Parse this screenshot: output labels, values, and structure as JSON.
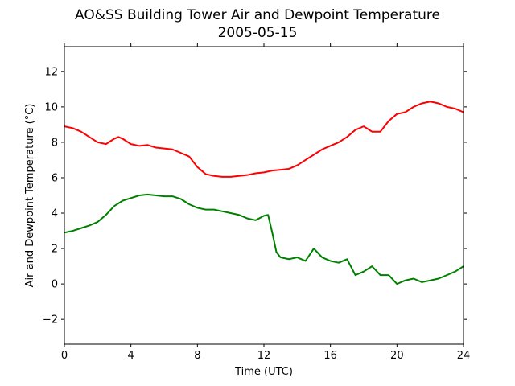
{
  "chart_data": {
    "type": "line",
    "title": "AO&SS Building Tower Air and Dewpoint Temperature",
    "subtitle": "2005-05-15",
    "xlabel": "Time (UTC)",
    "ylabel": "Air and Dewpoint Temperature (°C)",
    "xlim": [
      0,
      24
    ],
    "ylim": [
      -3.4,
      13.4
    ],
    "x_ticks": [
      0,
      4,
      8,
      12,
      16,
      20,
      24
    ],
    "y_ticks": [
      -2,
      0,
      2,
      4,
      6,
      8,
      10,
      12
    ],
    "grid": false,
    "legend": "none",
    "series": [
      {
        "color": "#ff0000",
        "x": [
          0,
          0.5,
          1,
          1.5,
          2,
          2.5,
          3,
          3.25,
          3.5,
          4,
          4.5,
          5,
          5.5,
          6,
          6.5,
          7,
          7.5,
          8,
          8.5,
          9,
          9.5,
          10,
          10.5,
          11,
          11.5,
          12,
          12.5,
          13,
          13.5,
          14,
          14.5,
          15,
          15.5,
          16,
          16.5,
          17,
          17.5,
          18,
          18.5,
          19,
          19.5,
          20,
          20.5,
          21,
          21.5,
          22,
          22.5,
          23,
          23.5,
          24
        ],
        "y": [
          8.9,
          8.8,
          8.6,
          8.3,
          8.0,
          7.9,
          8.2,
          8.3,
          8.2,
          7.9,
          7.8,
          7.85,
          7.7,
          7.65,
          7.6,
          7.4,
          7.2,
          6.6,
          6.2,
          6.1,
          6.05,
          6.05,
          6.1,
          6.15,
          6.25,
          6.3,
          6.4,
          6.45,
          6.5,
          6.7,
          7.0,
          7.3,
          7.6,
          7.8,
          8.0,
          8.3,
          8.7,
          8.9,
          8.6,
          8.6,
          9.2,
          9.6,
          9.7,
          10.0,
          10.2,
          10.3,
          10.2,
          10.0,
          9.9,
          9.7
        ]
      },
      {
        "color": "#008000",
        "x": [
          0,
          0.5,
          1,
          1.5,
          2,
          2.5,
          3,
          3.5,
          4,
          4.5,
          5,
          5.5,
          6,
          6.5,
          7,
          7.5,
          8,
          8.5,
          9,
          9.5,
          10,
          10.5,
          11,
          11.5,
          12,
          12.25,
          12.5,
          12.75,
          13,
          13.5,
          14,
          14.5,
          15,
          15.5,
          16,
          16.5,
          17,
          17.5,
          18,
          18.5,
          19,
          19.5,
          20,
          20.5,
          21,
          21.5,
          22,
          22.5,
          23,
          23.5,
          24
        ],
        "y": [
          2.9,
          3.0,
          3.15,
          3.3,
          3.5,
          3.9,
          4.4,
          4.7,
          4.85,
          5.0,
          5.05,
          5.0,
          4.95,
          4.95,
          4.8,
          4.5,
          4.3,
          4.2,
          4.2,
          4.1,
          4.0,
          3.9,
          3.7,
          3.6,
          3.85,
          3.9,
          2.9,
          1.8,
          1.5,
          1.4,
          1.5,
          1.3,
          2.0,
          1.5,
          1.3,
          1.2,
          1.4,
          0.5,
          0.7,
          1.0,
          0.5,
          0.5,
          0.0,
          0.2,
          0.3,
          0.1,
          0.2,
          0.3,
          0.5,
          0.7,
          1.0
        ]
      }
    ]
  }
}
